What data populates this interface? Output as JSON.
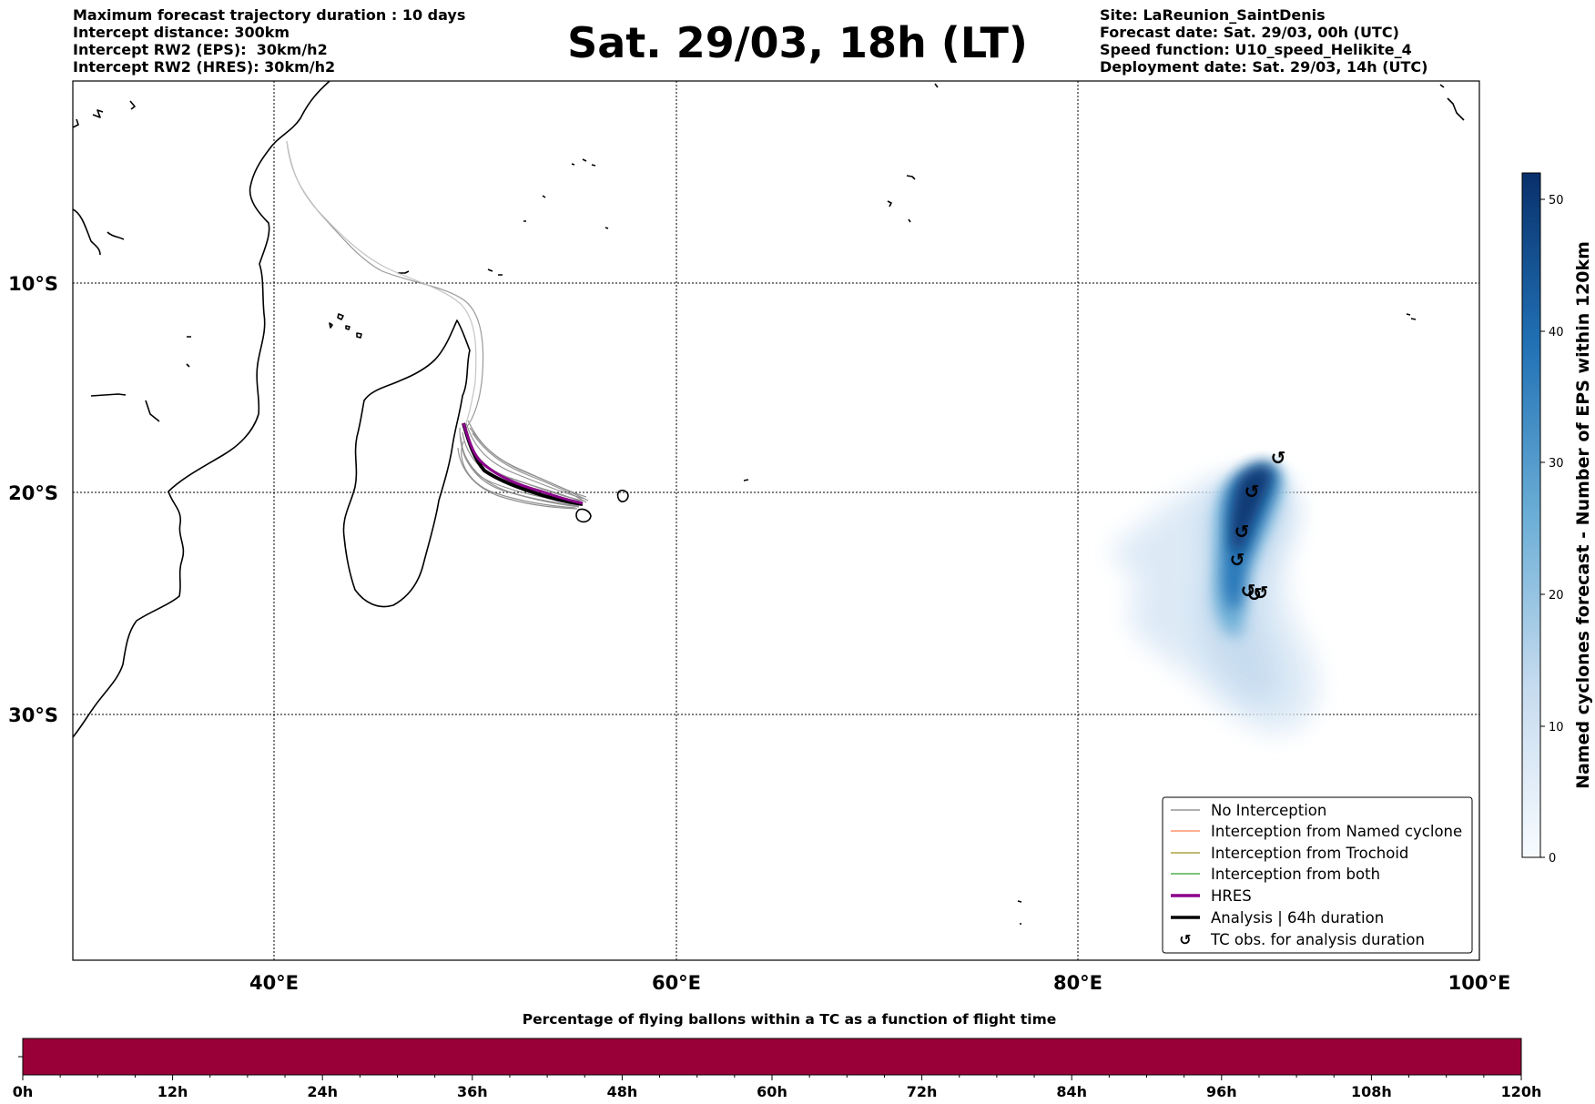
{
  "header_left": {
    "line1": "Maximum forecast trajectory duration : 10 days",
    "line2": "Intercept distance: 300km",
    "line3": "Intercept RW2 (EPS):  30km/h2",
    "line4": "Intercept RW2 (HRES): 30km/h2"
  },
  "title": "Sat. 29/03, 18h (LT)",
  "header_right": {
    "line1": "Site: LaReunion_SaintDenis",
    "line2": "Forecast date: Sat. 29/03, 00h (UTC)",
    "line3": "Speed function: U10_speed_Helikite_4",
    "line4": "Deployment date: Sat. 29/03, 14h (UTC)"
  },
  "map": {
    "lon_ticks": [
      "40°E",
      "60°E",
      "80°E",
      "100°E"
    ],
    "lat_ticks": [
      "10°S",
      "20°S",
      "30°S"
    ]
  },
  "legend": {
    "items": [
      {
        "label": "No Interception",
        "color": "#808080"
      },
      {
        "label": "Interception from Named cyclone",
        "color": "#ff7f50"
      },
      {
        "label": "Interception from Trochoid",
        "color": "#9a8f1a"
      },
      {
        "label": "Interception from both",
        "color": "#2ca02c"
      },
      {
        "label": "HRES",
        "color": "#8b008b"
      },
      {
        "label": "Analysis | 64h duration",
        "color": "#000000"
      },
      {
        "label": "TC obs. for analysis duration",
        "icon": "cyclone-icon"
      }
    ]
  },
  "colorbar": {
    "label": "Named cyclones forecast - Number of EPS within 120km",
    "ticks": [
      "0",
      "10",
      "20",
      "30",
      "40",
      "50"
    ],
    "colormap": [
      "#f7fbff",
      "#c6dbef",
      "#6baed6",
      "#2171b5",
      "#08306b"
    ]
  },
  "flight_time_bar": {
    "title": "Percentage of flying ballons within a TC as a function of flight time",
    "color": "#9a0038",
    "ticks": [
      "0h",
      "12h",
      "24h",
      "36h",
      "48h",
      "60h",
      "72h",
      "84h",
      "96h",
      "108h",
      "120h"
    ]
  }
}
